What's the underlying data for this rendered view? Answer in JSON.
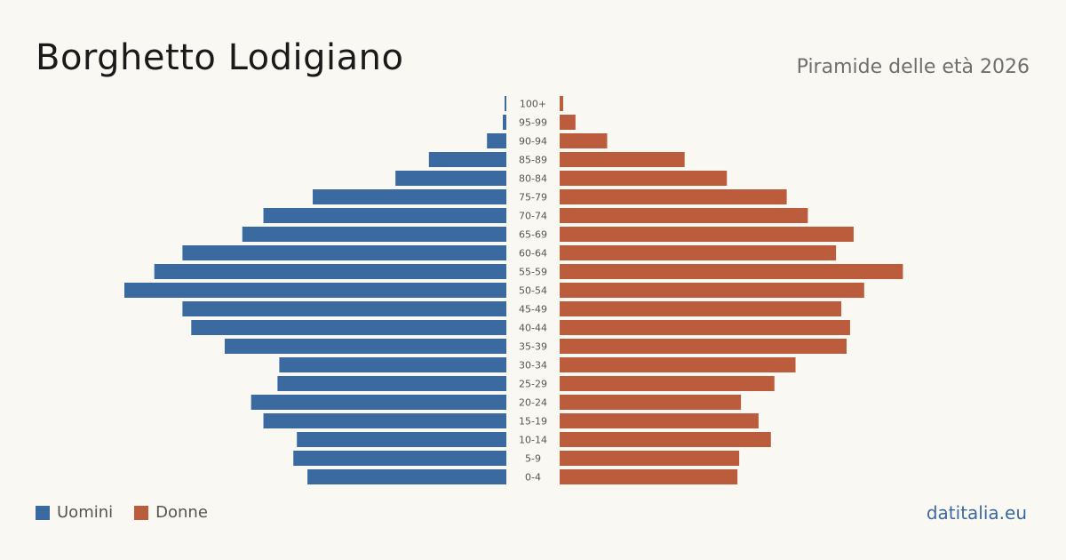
{
  "header": {
    "title": "Borghetto Lodigiano",
    "subtitle": "Piramide delle età 2026"
  },
  "brand": "datitalia.eu",
  "colors": {
    "male": "#3b6aa0",
    "female": "#bb5c3c",
    "background": "#faf8f3"
  },
  "chart_data": {
    "type": "bar",
    "orientation": "horizontal-pyramid",
    "categories": [
      "100+",
      "95-99",
      "90-94",
      "85-89",
      "80-84",
      "75-79",
      "70-74",
      "65-69",
      "60-64",
      "55-59",
      "50-54",
      "45-49",
      "40-44",
      "35-39",
      "30-34",
      "25-29",
      "20-24",
      "15-19",
      "10-14",
      "5-9",
      "0-4"
    ],
    "series": [
      {
        "name": "Uomini",
        "side": "left",
        "values": [
          1,
          2,
          11,
          44,
          63,
          110,
          138,
          150,
          184,
          200,
          217,
          184,
          179,
          160,
          129,
          130,
          145,
          138,
          119,
          121,
          113
        ]
      },
      {
        "name": "Donne",
        "side": "right",
        "values": [
          2,
          9,
          27,
          71,
          95,
          129,
          141,
          167,
          157,
          195,
          173,
          160,
          165,
          163,
          134,
          122,
          103,
          113,
          120,
          102,
          101
        ]
      }
    ],
    "legend": [
      "Uomini",
      "Donne"
    ],
    "legend_position": "bottom-left",
    "grid": false
  }
}
